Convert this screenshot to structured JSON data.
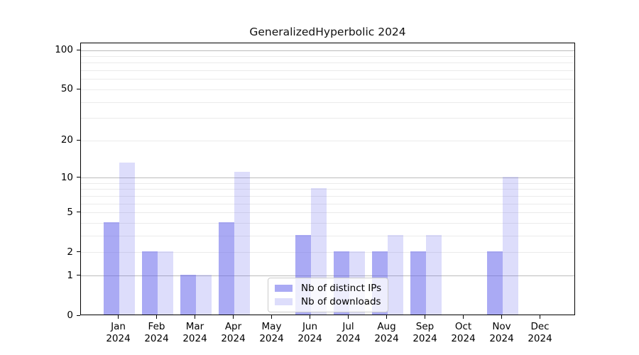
{
  "chart_data": {
    "type": "bar",
    "title": "GeneralizedHyperbolic 2024",
    "categories": [
      "Jan 2024",
      "Feb 2024",
      "Mar 2024",
      "Apr 2024",
      "May 2024",
      "Jun 2024",
      "Jul 2024",
      "Aug 2024",
      "Sep 2024",
      "Oct 2024",
      "Nov 2024",
      "Dec 2024"
    ],
    "x_tick_months": [
      "Jan",
      "Feb",
      "Mar",
      "Apr",
      "May",
      "Jun",
      "Jul",
      "Aug",
      "Sep",
      "Oct",
      "Nov",
      "Dec"
    ],
    "x_tick_year": "2024",
    "series": [
      {
        "name": "Nb of distinct IPs",
        "color": "rgba(100,100,235,0.55)",
        "values": [
          4,
          2,
          1,
          4,
          0,
          3,
          2,
          2,
          2,
          0,
          2,
          0
        ]
      },
      {
        "name": "Nb of downloads",
        "color": "rgba(100,100,235,0.22)",
        "values": [
          13,
          2,
          1,
          11,
          0,
          8,
          2,
          3,
          3,
          0,
          10,
          0
        ]
      }
    ],
    "yscale": "log1p",
    "ylim": [
      0,
      113.3
    ],
    "y_ticks": [
      {
        "value": 100,
        "label": "100"
      },
      {
        "value": 50,
        "label": "50"
      },
      {
        "value": 20,
        "label": "20"
      },
      {
        "value": 10,
        "label": "10"
      },
      {
        "value": 5,
        "label": "5"
      },
      {
        "value": 2,
        "label": "2"
      },
      {
        "value": 1,
        "label": "1"
      },
      {
        "value": 0,
        "label": "0"
      }
    ],
    "major_gridline_values": [
      1,
      10,
      100
    ],
    "minor_gridline_values": [
      2,
      3,
      4,
      5,
      6,
      7,
      8,
      9,
      20,
      30,
      40,
      50,
      60,
      70,
      80,
      90
    ],
    "grid": true,
    "legend_position": "lower center inside",
    "colors": {
      "major_grid": "#bbbbbb",
      "minor_grid": "#ebebeb",
      "spine": "#000000",
      "background": "#ffffff",
      "bar_base": "#6464eb"
    }
  }
}
